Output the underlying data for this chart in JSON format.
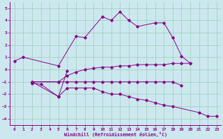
{
  "xlabel": "Windchill (Refroidissement éolien,°C)",
  "background_color": "#cce8ee",
  "line_color": "#880088",
  "grid_color": "#99ccbb",
  "xlim": [
    -0.5,
    23.5
  ],
  "ylim": [
    -4.5,
    5.5
  ],
  "yticks": [
    -4,
    -3,
    -2,
    -1,
    0,
    1,
    2,
    3,
    4,
    5
  ],
  "xticks": [
    0,
    1,
    2,
    3,
    4,
    5,
    6,
    7,
    8,
    9,
    10,
    11,
    12,
    13,
    14,
    15,
    16,
    17,
    18,
    19,
    20,
    21,
    22,
    23
  ],
  "series": [
    {
      "x": [
        0,
        1,
        5,
        7,
        8,
        10,
        11,
        12,
        13,
        14,
        16,
        17,
        18,
        19,
        20
      ],
      "y": [
        0.7,
        1.0,
        0.3,
        2.7,
        2.6,
        4.3,
        4.0,
        4.7,
        4.0,
        3.5,
        3.8,
        3.8,
        2.6,
        1.1,
        0.5
      ]
    },
    {
      "x": [
        2,
        3,
        5,
        6
      ],
      "y": [
        -1.1,
        -1.2,
        -2.2,
        -0.1
      ]
    },
    {
      "x": [
        2,
        5,
        6,
        7,
        8,
        9,
        10,
        11,
        12,
        13,
        14,
        15,
        16,
        17,
        18,
        19
      ],
      "y": [
        -1.0,
        -1.0,
        -1.0,
        -1.0,
        -1.0,
        -1.0,
        -1.0,
        -1.0,
        -1.0,
        -1.0,
        -1.0,
        -1.0,
        -1.0,
        -1.0,
        -1.0,
        -1.3
      ]
    },
    {
      "x": [
        2,
        5,
        6,
        7,
        8,
        9,
        10,
        11,
        12,
        13,
        14,
        15,
        16,
        17,
        18,
        21,
        22,
        23
      ],
      "y": [
        -1.0,
        -2.2,
        -1.5,
        -1.5,
        -1.5,
        -1.5,
        -1.8,
        -2.0,
        -2.0,
        -2.2,
        -2.4,
        -2.5,
        -2.7,
        -2.9,
        -3.0,
        -3.5,
        -3.8,
        -3.8
      ]
    },
    {
      "x": [
        2,
        5,
        6,
        7,
        8,
        9,
        10,
        11,
        12,
        13,
        14,
        15,
        16,
        17,
        18,
        19,
        20
      ],
      "y": [
        -1.0,
        -1.0,
        -0.5,
        -0.2,
        0.0,
        0.1,
        0.2,
        0.2,
        0.3,
        0.3,
        0.4,
        0.4,
        0.4,
        0.4,
        0.5,
        0.5,
        0.5
      ]
    }
  ]
}
